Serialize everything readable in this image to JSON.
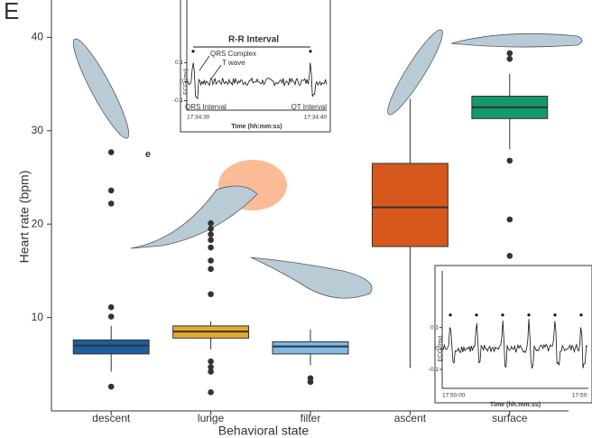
{
  "panel_label": "E",
  "annotation": "e",
  "chart_data": {
    "type": "box",
    "ylabel": "Heart rate (bpm)",
    "xlabel": "Behavioral state",
    "categories": [
      "descent",
      "lunge",
      "filter",
      "ascent",
      "surface"
    ],
    "colors": [
      "#1d5e9c",
      "#e3aa2f",
      "#80b7e4",
      "#d6581c",
      "#14986d"
    ],
    "boxes": [
      {
        "min": 4.2,
        "q1": 6.1,
        "median": 7.0,
        "q3": 7.6,
        "max": 9.1,
        "outliers": [
          27.7,
          23.6,
          22.2,
          11.1,
          10.1,
          2.6
        ]
      },
      {
        "min": 6.6,
        "q1": 7.8,
        "median": 8.5,
        "q3": 9.1,
        "max": 9.6,
        "outliers": [
          20.1,
          19.5,
          18.9,
          18.3,
          17.5,
          16.1,
          15.2,
          12.5,
          5.3,
          4.7,
          4.2,
          2.0
        ]
      },
      {
        "min": 4.9,
        "q1": 6.1,
        "median": 6.9,
        "q3": 7.4,
        "max": 8.7,
        "outliers": [
          3.5,
          3.1
        ]
      },
      {
        "min": 4.6,
        "q1": 17.6,
        "median": 21.8,
        "q3": 26.5,
        "max": 33.4,
        "outliers": []
      },
      {
        "min": 28.0,
        "q1": 31.3,
        "median": 32.5,
        "q3": 33.7,
        "max": 36.1,
        "outliers": [
          38.3,
          37.7,
          26.8,
          20.5,
          16.6
        ]
      }
    ],
    "ylim": [
      0,
      44
    ],
    "yticks": [
      10,
      20,
      30,
      40
    ]
  },
  "insets": [
    {
      "title": "R-R Interval",
      "annotations": [
        "QRS Complex",
        "T wave",
        "QRS Interval",
        "QT Interval"
      ],
      "ylabel": "ECG (mv)",
      "ylim": [
        -0.15,
        0.43
      ],
      "yticks": [
        0.1,
        0,
        -0.1
      ],
      "xticks": [
        "17:34:30",
        "17:34:40"
      ],
      "xlabel": "Time (hh:mm:ss)"
    },
    {
      "ylabel": "ECG (mv)",
      "ylim": [
        -0.19,
        0.37
      ],
      "yticks": [
        0.1,
        0,
        -0.1
      ],
      "xticks": [
        "17:50:00",
        "17:50:"
      ],
      "xlabel": "Time (hh:mm:ss)"
    }
  ]
}
